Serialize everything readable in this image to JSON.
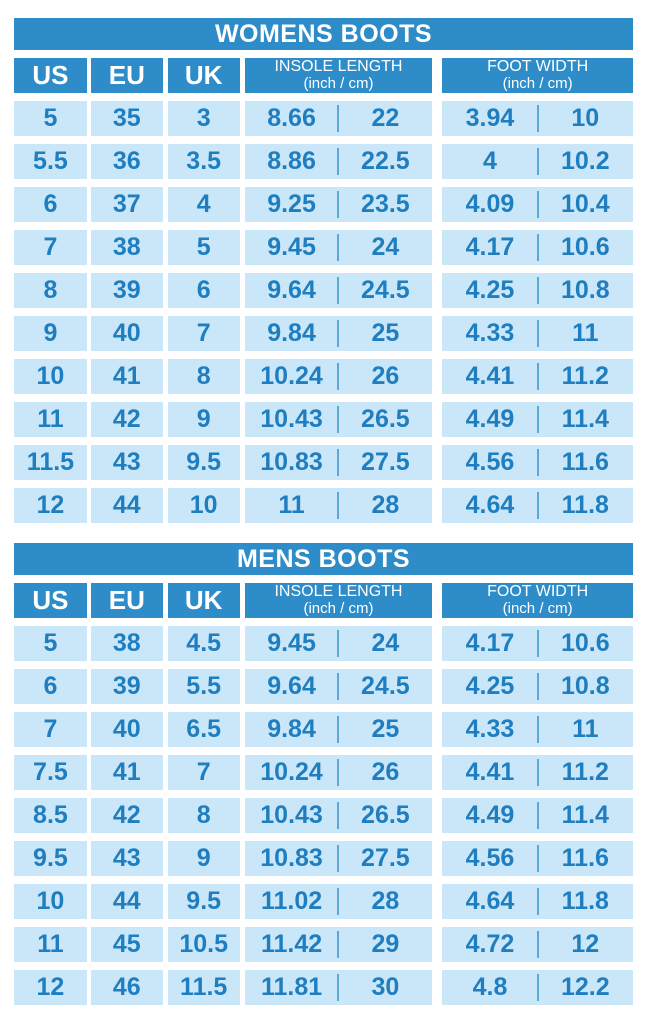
{
  "colors": {
    "header_blue": "#2E8CC9",
    "row_light_blue": "#C9E7F8",
    "text_blue": "#1F7EC0",
    "divider_blue": "#5EA8D6",
    "header_text": "#FFFFFF"
  },
  "chart_data": [
    {
      "type": "table",
      "title": "WOMENS BOOTS",
      "header": {
        "us": "US",
        "eu": "EU",
        "uk": "UK",
        "insole_title": "INSOLE LENGTH",
        "insole_sub": "(inch / cm)",
        "foot_title": "FOOT WIDTH",
        "foot_sub": "(inch / cm)"
      },
      "rows": [
        {
          "us": "5",
          "eu": "35",
          "uk": "3",
          "insole_inch": "8.66",
          "insole_cm": "22",
          "foot_inch": "3.94",
          "foot_cm": "10"
        },
        {
          "us": "5.5",
          "eu": "36",
          "uk": "3.5",
          "insole_inch": "8.86",
          "insole_cm": "22.5",
          "foot_inch": "4",
          "foot_cm": "10.2"
        },
        {
          "us": "6",
          "eu": "37",
          "uk": "4",
          "insole_inch": "9.25",
          "insole_cm": "23.5",
          "foot_inch": "4.09",
          "foot_cm": "10.4"
        },
        {
          "us": "7",
          "eu": "38",
          "uk": "5",
          "insole_inch": "9.45",
          "insole_cm": "24",
          "foot_inch": "4.17",
          "foot_cm": "10.6"
        },
        {
          "us": "8",
          "eu": "39",
          "uk": "6",
          "insole_inch": "9.64",
          "insole_cm": "24.5",
          "foot_inch": "4.25",
          "foot_cm": "10.8"
        },
        {
          "us": "9",
          "eu": "40",
          "uk": "7",
          "insole_inch": "9.84",
          "insole_cm": "25",
          "foot_inch": "4.33",
          "foot_cm": "11"
        },
        {
          "us": "10",
          "eu": "41",
          "uk": "8",
          "insole_inch": "10.24",
          "insole_cm": "26",
          "foot_inch": "4.41",
          "foot_cm": "11.2"
        },
        {
          "us": "11",
          "eu": "42",
          "uk": "9",
          "insole_inch": "10.43",
          "insole_cm": "26.5",
          "foot_inch": "4.49",
          "foot_cm": "11.4"
        },
        {
          "us": "11.5",
          "eu": "43",
          "uk": "9.5",
          "insole_inch": "10.83",
          "insole_cm": "27.5",
          "foot_inch": "4.56",
          "foot_cm": "11.6"
        },
        {
          "us": "12",
          "eu": "44",
          "uk": "10",
          "insole_inch": "11",
          "insole_cm": "28",
          "foot_inch": "4.64",
          "foot_cm": "11.8"
        }
      ]
    },
    {
      "type": "table",
      "title": "MENS BOOTS",
      "header": {
        "us": "US",
        "eu": "EU",
        "uk": "UK",
        "insole_title": "INSOLE LENGTH",
        "insole_sub": "(inch / cm)",
        "foot_title": "FOOT WIDTH",
        "foot_sub": "(inch / cm)"
      },
      "rows": [
        {
          "us": "5",
          "eu": "38",
          "uk": "4.5",
          "insole_inch": "9.45",
          "insole_cm": "24",
          "foot_inch": "4.17",
          "foot_cm": "10.6"
        },
        {
          "us": "6",
          "eu": "39",
          "uk": "5.5",
          "insole_inch": "9.64",
          "insole_cm": "24.5",
          "foot_inch": "4.25",
          "foot_cm": "10.8"
        },
        {
          "us": "7",
          "eu": "40",
          "uk": "6.5",
          "insole_inch": "9.84",
          "insole_cm": "25",
          "foot_inch": "4.33",
          "foot_cm": "11"
        },
        {
          "us": "7.5",
          "eu": "41",
          "uk": "7",
          "insole_inch": "10.24",
          "insole_cm": "26",
          "foot_inch": "4.41",
          "foot_cm": "11.2"
        },
        {
          "us": "8.5",
          "eu": "42",
          "uk": "8",
          "insole_inch": "10.43",
          "insole_cm": "26.5",
          "foot_inch": "4.49",
          "foot_cm": "11.4"
        },
        {
          "us": "9.5",
          "eu": "43",
          "uk": "9",
          "insole_inch": "10.83",
          "insole_cm": "27.5",
          "foot_inch": "4.56",
          "foot_cm": "11.6"
        },
        {
          "us": "10",
          "eu": "44",
          "uk": "9.5",
          "insole_inch": "11.02",
          "insole_cm": "28",
          "foot_inch": "4.64",
          "foot_cm": "11.8"
        },
        {
          "us": "11",
          "eu": "45",
          "uk": "10.5",
          "insole_inch": "11.42",
          "insole_cm": "29",
          "foot_inch": "4.72",
          "foot_cm": "12"
        },
        {
          "us": "12",
          "eu": "46",
          "uk": "11.5",
          "insole_inch": "11.81",
          "insole_cm": "30",
          "foot_inch": "4.8",
          "foot_cm": "12.2"
        }
      ]
    }
  ]
}
